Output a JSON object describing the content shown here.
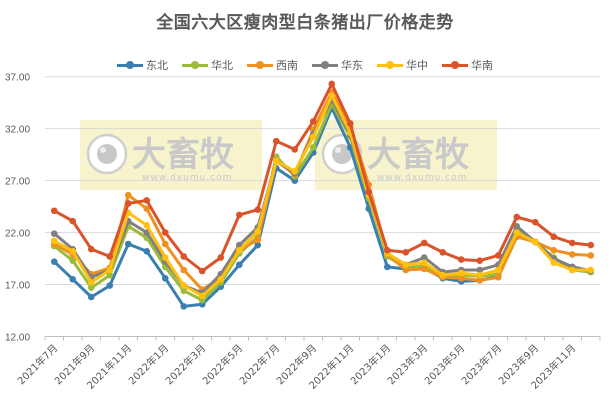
{
  "chart_data": {
    "type": "line",
    "title": "全国六大区瘦肉型白条猪出厂价格走势",
    "xlabel": "",
    "ylabel": "",
    "ylim": [
      12,
      37
    ],
    "yticks": [
      "12.00",
      "17.00",
      "22.00",
      "27.00",
      "32.00",
      "37.00"
    ],
    "grid": true,
    "legend_position": "top",
    "x": [
      "2021年7月",
      "2021年8月",
      "2021年9月",
      "2021年10月",
      "2021年11月",
      "2021年12月",
      "2022年1月",
      "2022年2月",
      "2022年3月",
      "2022年4月",
      "2022年5月",
      "2022年6月",
      "2022年7月",
      "2022年8月",
      "2022年9月",
      "2022年10月",
      "2022年11月",
      "2022年12月",
      "2023年1月",
      "2023年2月",
      "2023年3月",
      "2023年4月",
      "2023年5月",
      "2023年6月",
      "2023年7月",
      "2023年8月",
      "2023年9月",
      "2023年10月",
      "2023年11月",
      "2023年12月"
    ],
    "xtick_labels": [
      "2021年7月",
      "2021年9月",
      "2021年11月",
      "2022年1月",
      "2022年3月",
      "2022年5月",
      "2022年7月",
      "2022年9月",
      "2022年11月",
      "2023年1月",
      "2023年3月",
      "2023年5月",
      "2023年7月",
      "2023年9月",
      "2023年11月"
    ],
    "series": [
      {
        "name": "东北",
        "color": "#3A7FB0",
        "values": [
          19.2,
          17.5,
          15.8,
          16.9,
          20.9,
          20.2,
          17.6,
          14.9,
          15.1,
          16.8,
          18.9,
          20.8,
          28.2,
          27.0,
          29.7,
          34.0,
          30.2,
          24.3,
          18.7,
          18.5,
          18.6,
          17.6,
          17.3,
          17.4,
          17.8,
          21.6,
          21.1,
          19.5,
          18.7,
          18.3
        ]
      },
      {
        "name": "华北",
        "color": "#9BBB3B",
        "values": [
          20.7,
          19.3,
          16.7,
          17.9,
          22.6,
          21.5,
          18.7,
          16.4,
          15.5,
          17.2,
          20.0,
          21.6,
          29.3,
          27.4,
          30.2,
          34.4,
          31.2,
          25.3,
          19.7,
          18.6,
          18.8,
          17.8,
          17.9,
          17.8,
          18.0,
          22.4,
          21.1,
          19.6,
          18.4,
          18.2
        ]
      },
      {
        "name": "西南",
        "color": "#F0901E",
        "values": [
          20.9,
          19.9,
          18.0,
          18.6,
          25.6,
          24.3,
          20.9,
          18.4,
          16.5,
          17.7,
          20.3,
          21.3,
          28.9,
          27.6,
          31.9,
          35.5,
          32.2,
          26.6,
          19.9,
          18.4,
          18.5,
          17.7,
          17.6,
          17.4,
          17.7,
          21.6,
          21.1,
          20.3,
          19.9,
          19.8
        ]
      },
      {
        "name": "华东",
        "color": "#808080",
        "values": [
          21.9,
          20.4,
          17.7,
          18.4,
          23.1,
          22.0,
          19.2,
          16.9,
          16.2,
          18.0,
          20.8,
          22.5,
          28.9,
          27.7,
          31.5,
          34.8,
          31.4,
          25.8,
          20.0,
          18.9,
          19.6,
          18.2,
          18.4,
          18.4,
          18.9,
          22.6,
          21.1,
          19.5,
          18.7,
          18.3
        ]
      },
      {
        "name": "华中",
        "color": "#FFC00F",
        "values": [
          21.2,
          20.2,
          17.2,
          18.4,
          23.9,
          22.7,
          19.6,
          16.9,
          15.9,
          17.5,
          20.3,
          22.1,
          28.9,
          27.9,
          31.2,
          35.2,
          31.6,
          25.6,
          20.0,
          18.9,
          19.1,
          17.9,
          18.1,
          17.9,
          18.4,
          22.0,
          21.1,
          19.1,
          18.4,
          18.4
        ]
      },
      {
        "name": "华南",
        "color": "#D9542A",
        "values": [
          24.1,
          23.1,
          20.4,
          19.7,
          24.8,
          25.1,
          22.0,
          19.7,
          18.3,
          19.6,
          23.7,
          24.2,
          30.8,
          30.0,
          32.7,
          36.3,
          32.5,
          25.9,
          20.3,
          20.1,
          21.0,
          20.1,
          19.4,
          19.3,
          19.8,
          23.5,
          23.0,
          21.6,
          21.0,
          20.8
        ]
      }
    ]
  },
  "watermark": {
    "brand": "大畜牧",
    "url": "www.dxumu.com"
  }
}
